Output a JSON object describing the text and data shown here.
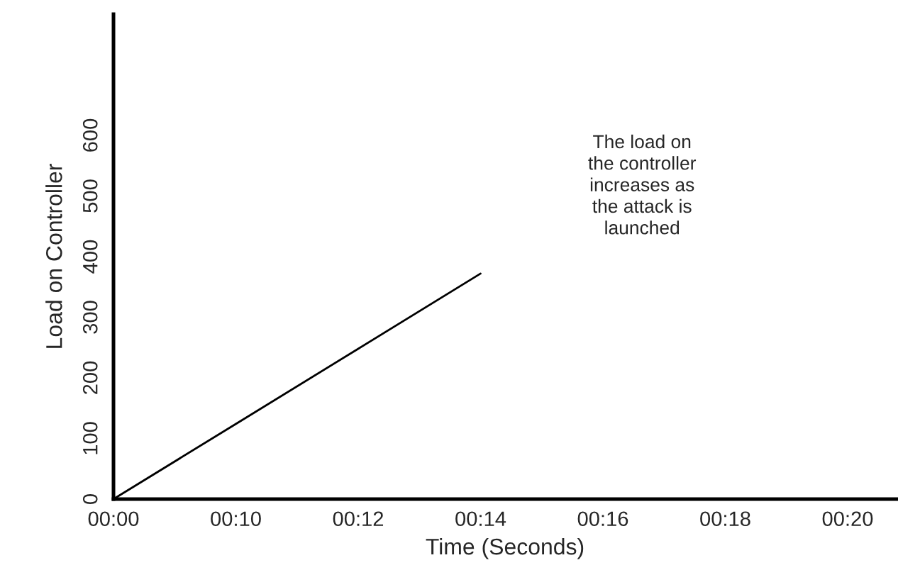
{
  "chart_data": {
    "type": "line",
    "xlabel": "Time (Seconds)",
    "ylabel": "Load on Controller",
    "categories": [
      "00:00",
      "00:10",
      "00:12",
      "00:14",
      "00:16",
      "00:18",
      "00:20"
    ],
    "series": [
      {
        "color": "#000000",
        "values": [
          0,
          124,
          248,
          372,
          null,
          null,
          null
        ]
      }
    ],
    "ylim": [
      0,
      800
    ],
    "yticks": [
      0,
      100,
      200,
      300,
      400,
      500,
      600
    ],
    "annotations": [
      "The load on\nthe controller\nincreases as\nthe attack is\nlaunched"
    ],
    "grid": false,
    "legend": false,
    "marker": "none",
    "line_style": "solid"
  }
}
